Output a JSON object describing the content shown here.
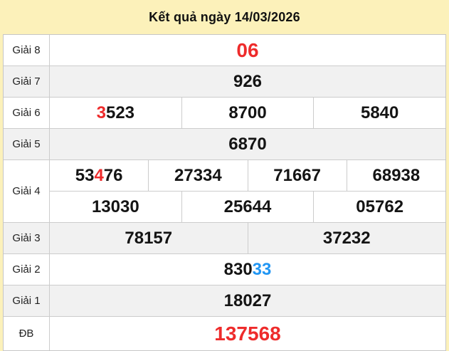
{
  "header": {
    "title": "Kết quả ngày 14/03/2026"
  },
  "colors": {
    "accent_red": "#ee2b2b",
    "accent_blue": "#2196f3",
    "number_black": "#141414",
    "header_bg": "#fcf1ba",
    "row_alt_bg": "#f1f1f1",
    "border": "#cccccc"
  },
  "results": {
    "rows": [
      {
        "label": "Giải 8",
        "lines": [
          [
            {
              "segments": [
                {
                  "t": "06",
                  "c": "red"
                }
              ]
            }
          ]
        ]
      },
      {
        "label": "Giải 7",
        "lines": [
          [
            {
              "segments": [
                {
                  "t": "926",
                  "c": "black"
                }
              ]
            }
          ]
        ]
      },
      {
        "label": "Giải 6",
        "lines": [
          [
            {
              "segments": [
                {
                  "t": "3",
                  "c": "red"
                },
                {
                  "t": "523",
                  "c": "black"
                }
              ]
            },
            {
              "segments": [
                {
                  "t": "8700",
                  "c": "black"
                }
              ]
            },
            {
              "segments": [
                {
                  "t": "5840",
                  "c": "black"
                }
              ]
            }
          ]
        ]
      },
      {
        "label": "Giải 5",
        "lines": [
          [
            {
              "segments": [
                {
                  "t": "6870",
                  "c": "black"
                }
              ]
            }
          ]
        ]
      },
      {
        "label": "Giải 4",
        "lines": [
          [
            {
              "segments": [
                {
                  "t": "53",
                  "c": "black"
                },
                {
                  "t": "4",
                  "c": "red"
                },
                {
                  "t": "76",
                  "c": "black"
                }
              ]
            },
            {
              "segments": [
                {
                  "t": "27334",
                  "c": "black"
                }
              ]
            },
            {
              "segments": [
                {
                  "t": "71667",
                  "c": "black"
                }
              ]
            },
            {
              "segments": [
                {
                  "t": "68938",
                  "c": "black"
                }
              ]
            }
          ],
          [
            {
              "segments": [
                {
                  "t": "13030",
                  "c": "black"
                }
              ]
            },
            {
              "segments": [
                {
                  "t": "25644",
                  "c": "black"
                }
              ]
            },
            {
              "segments": [
                {
                  "t": "05762",
                  "c": "black"
                }
              ]
            }
          ]
        ]
      },
      {
        "label": "Giải 3",
        "lines": [
          [
            {
              "segments": [
                {
                  "t": "78157",
                  "c": "black"
                }
              ]
            },
            {
              "segments": [
                {
                  "t": "37232",
                  "c": "black"
                }
              ]
            }
          ]
        ]
      },
      {
        "label": "Giải 2",
        "lines": [
          [
            {
              "segments": [
                {
                  "t": "830",
                  "c": "black"
                },
                {
                  "t": "33",
                  "c": "blue"
                }
              ]
            }
          ]
        ]
      },
      {
        "label": "Giải 1",
        "lines": [
          [
            {
              "segments": [
                {
                  "t": "18027",
                  "c": "black"
                }
              ]
            }
          ]
        ]
      },
      {
        "label": "ĐB",
        "lines": [
          [
            {
              "segments": [
                {
                  "t": "137568",
                  "c": "red"
                }
              ]
            }
          ]
        ]
      }
    ]
  }
}
